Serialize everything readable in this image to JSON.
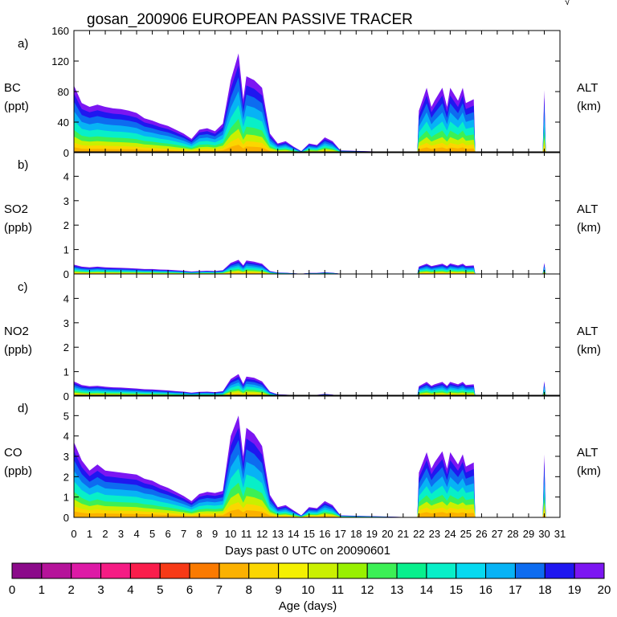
{
  "title": "gosan_200906 EUROPEAN PASSIVE TRACER",
  "chart_data": [
    {
      "type": "area",
      "panel_label": "a)",
      "species": "BC",
      "unit": "(ppt)",
      "right_label": "ALT",
      "right_unit": "(km)",
      "ylim": [
        0,
        160
      ],
      "yticks": [
        0,
        40,
        80,
        120,
        160
      ],
      "samples": [
        [
          0,
          88
        ],
        [
          0.5,
          65
        ],
        [
          1,
          60
        ],
        [
          1.5,
          63
        ],
        [
          2,
          60
        ],
        [
          2.5,
          58
        ],
        [
          3,
          57
        ],
        [
          3.5,
          55
        ],
        [
          4,
          52
        ],
        [
          4.5,
          45
        ],
        [
          5,
          42
        ],
        [
          5.5,
          38
        ],
        [
          6,
          35
        ],
        [
          6.5,
          30
        ],
        [
          7,
          25
        ],
        [
          7.5,
          18
        ],
        [
          8,
          30
        ],
        [
          8.5,
          32
        ],
        [
          9,
          28
        ],
        [
          9.5,
          38
        ],
        [
          10,
          95
        ],
        [
          10.5,
          130
        ],
        [
          10.8,
          70
        ],
        [
          11,
          100
        ],
        [
          11.5,
          95
        ],
        [
          12,
          85
        ],
        [
          12.5,
          25
        ],
        [
          13,
          12
        ],
        [
          13.5,
          15
        ],
        [
          14,
          8
        ],
        [
          14.5,
          2
        ],
        [
          15,
          12
        ],
        [
          15.5,
          10
        ],
        [
          16,
          20
        ],
        [
          16.5,
          15
        ],
        [
          17,
          3
        ],
        [
          21.9,
          0
        ],
        [
          22,
          55
        ],
        [
          22.5,
          85
        ],
        [
          22.8,
          60
        ],
        [
          23,
          68
        ],
        [
          23.5,
          85
        ],
        [
          23.8,
          60
        ],
        [
          24,
          85
        ],
        [
          24.5,
          68
        ],
        [
          24.8,
          85
        ],
        [
          25,
          65
        ],
        [
          25.5,
          70
        ],
        [
          25.6,
          0
        ],
        [
          29.9,
          0
        ],
        [
          30,
          82
        ],
        [
          30.1,
          0
        ]
      ]
    },
    {
      "type": "area",
      "panel_label": "b)",
      "species": "SO2",
      "unit": "(ppb)",
      "right_label": "ALT",
      "right_unit": "(km)",
      "ylim": [
        0,
        5
      ],
      "yticks": [
        0,
        1,
        2,
        3,
        4
      ],
      "samples": [
        [
          0,
          0.38
        ],
        [
          0.5,
          0.3
        ],
        [
          1,
          0.27
        ],
        [
          1.5,
          0.3
        ],
        [
          2,
          0.27
        ],
        [
          2.5,
          0.26
        ],
        [
          3,
          0.25
        ],
        [
          3.5,
          0.24
        ],
        [
          4,
          0.22
        ],
        [
          4.5,
          0.2
        ],
        [
          5,
          0.2
        ],
        [
          5.5,
          0.18
        ],
        [
          6,
          0.17
        ],
        [
          6.5,
          0.15
        ],
        [
          7,
          0.13
        ],
        [
          7.5,
          0.1
        ],
        [
          8,
          0.12
        ],
        [
          8.5,
          0.13
        ],
        [
          9,
          0.12
        ],
        [
          9.5,
          0.15
        ],
        [
          10,
          0.45
        ],
        [
          10.5,
          0.58
        ],
        [
          10.8,
          0.35
        ],
        [
          11,
          0.55
        ],
        [
          11.5,
          0.5
        ],
        [
          12,
          0.42
        ],
        [
          12.5,
          0.12
        ],
        [
          13,
          0.06
        ],
        [
          13.5,
          0.05
        ],
        [
          14,
          0.03
        ],
        [
          14.5,
          0.01
        ],
        [
          15,
          0.04
        ],
        [
          15.5,
          0.04
        ],
        [
          16,
          0.07
        ],
        [
          16.5,
          0.05
        ],
        [
          17,
          0.01
        ],
        [
          21.9,
          0
        ],
        [
          22,
          0.3
        ],
        [
          22.5,
          0.42
        ],
        [
          22.8,
          0.32
        ],
        [
          23,
          0.35
        ],
        [
          23.5,
          0.42
        ],
        [
          23.8,
          0.32
        ],
        [
          24,
          0.43
        ],
        [
          24.5,
          0.35
        ],
        [
          24.8,
          0.42
        ],
        [
          25,
          0.33
        ],
        [
          25.5,
          0.35
        ],
        [
          25.6,
          0
        ],
        [
          29.9,
          0
        ],
        [
          30,
          0.45
        ],
        [
          30.1,
          0
        ]
      ]
    },
    {
      "type": "area",
      "panel_label": "c)",
      "species": "NO2",
      "unit": "(ppb)",
      "right_label": "ALT",
      "right_unit": "(km)",
      "ylim": [
        0,
        5
      ],
      "yticks": [
        0,
        1,
        2,
        3,
        4
      ],
      "samples": [
        [
          0,
          0.6
        ],
        [
          0.5,
          0.45
        ],
        [
          1,
          0.4
        ],
        [
          1.5,
          0.42
        ],
        [
          2,
          0.38
        ],
        [
          2.5,
          0.36
        ],
        [
          3,
          0.35
        ],
        [
          3.5,
          0.33
        ],
        [
          4,
          0.31
        ],
        [
          4.5,
          0.28
        ],
        [
          5,
          0.27
        ],
        [
          5.5,
          0.25
        ],
        [
          6,
          0.23
        ],
        [
          6.5,
          0.2
        ],
        [
          7,
          0.18
        ],
        [
          7.5,
          0.14
        ],
        [
          8,
          0.17
        ],
        [
          8.5,
          0.18
        ],
        [
          9,
          0.16
        ],
        [
          9.5,
          0.2
        ],
        [
          10,
          0.7
        ],
        [
          10.5,
          0.9
        ],
        [
          10.8,
          0.5
        ],
        [
          11,
          0.8
        ],
        [
          11.5,
          0.75
        ],
        [
          12,
          0.6
        ],
        [
          12.5,
          0.18
        ],
        [
          13,
          0.07
        ],
        [
          13.5,
          0.06
        ],
        [
          14,
          0.04
        ],
        [
          14.5,
          0.02
        ],
        [
          15,
          0.05
        ],
        [
          15.5,
          0.05
        ],
        [
          16,
          0.09
        ],
        [
          16.5,
          0.06
        ],
        [
          17,
          0.01
        ],
        [
          21.9,
          0
        ],
        [
          22,
          0.4
        ],
        [
          22.5,
          0.58
        ],
        [
          22.8,
          0.42
        ],
        [
          23,
          0.48
        ],
        [
          23.5,
          0.58
        ],
        [
          23.8,
          0.42
        ],
        [
          24,
          0.58
        ],
        [
          24.5,
          0.48
        ],
        [
          24.8,
          0.58
        ],
        [
          25,
          0.45
        ],
        [
          25.5,
          0.48
        ],
        [
          25.6,
          0
        ],
        [
          29.9,
          0
        ],
        [
          30,
          0.62
        ],
        [
          30.1,
          0
        ]
      ]
    },
    {
      "type": "area",
      "panel_label": "d)",
      "species": "CO",
      "unit": "(ppb)",
      "right_label": "ALT",
      "right_unit": "(km)",
      "ylim": [
        0,
        6
      ],
      "yticks": [
        0,
        1,
        2,
        3,
        4,
        5
      ],
      "samples": [
        [
          0,
          3.7
        ],
        [
          0.5,
          2.8
        ],
        [
          1,
          2.3
        ],
        [
          1.5,
          2.6
        ],
        [
          2,
          2.3
        ],
        [
          2.5,
          2.25
        ],
        [
          3,
          2.2
        ],
        [
          3.5,
          2.15
        ],
        [
          4,
          2.1
        ],
        [
          4.5,
          1.9
        ],
        [
          5,
          1.8
        ],
        [
          5.5,
          1.6
        ],
        [
          6,
          1.45
        ],
        [
          6.5,
          1.25
        ],
        [
          7,
          1.05
        ],
        [
          7.5,
          0.8
        ],
        [
          8,
          1.15
        ],
        [
          8.5,
          1.25
        ],
        [
          9,
          1.2
        ],
        [
          9.5,
          1.3
        ],
        [
          10,
          4.0
        ],
        [
          10.5,
          5.0
        ],
        [
          10.8,
          3.0
        ],
        [
          11,
          4.4
        ],
        [
          11.5,
          4.1
        ],
        [
          12,
          3.5
        ],
        [
          12.5,
          1.1
        ],
        [
          13,
          0.5
        ],
        [
          13.5,
          0.6
        ],
        [
          14,
          0.35
        ],
        [
          14.5,
          0.1
        ],
        [
          15,
          0.5
        ],
        [
          15.5,
          0.45
        ],
        [
          16,
          0.8
        ],
        [
          16.5,
          0.6
        ],
        [
          17,
          0.1
        ],
        [
          21.9,
          0
        ],
        [
          22,
          2.2
        ],
        [
          22.5,
          3.2
        ],
        [
          22.8,
          2.4
        ],
        [
          23,
          2.7
        ],
        [
          23.5,
          3.25
        ],
        [
          23.8,
          2.4
        ],
        [
          24,
          3.2
        ],
        [
          24.5,
          2.6
        ],
        [
          24.8,
          3.1
        ],
        [
          25,
          2.5
        ],
        [
          25.5,
          2.7
        ],
        [
          25.6,
          0
        ],
        [
          29.9,
          0
        ],
        [
          30,
          3.1
        ],
        [
          30.1,
          0
        ]
      ]
    }
  ],
  "x_axis": {
    "label": "Days past 0 UTC on 20090601",
    "min": 0,
    "max": 31,
    "ticks": [
      "0",
      "1",
      "2",
      "3",
      "4",
      "5",
      "6",
      "7",
      "8",
      "9",
      "10",
      "11",
      "12",
      "13",
      "14",
      "15",
      "16",
      "17",
      "18",
      "19",
      "20",
      "21",
      "22",
      "23",
      "24",
      "25",
      "26",
      "27",
      "28",
      "29",
      "30",
      "31"
    ]
  },
  "colorbar": {
    "label": "Age (days)",
    "ticks": [
      "0",
      "1",
      "2",
      "3",
      "4",
      "5",
      "6",
      "7",
      "8",
      "9",
      "10",
      "11",
      "12",
      "13",
      "14",
      "15",
      "16",
      "17",
      "18",
      "19",
      "20"
    ],
    "colors": [
      "#8b0a8a",
      "#b5139a",
      "#dd1aa6",
      "#f51c84",
      "#fa1d4c",
      "#f73a17",
      "#fa7a00",
      "#fbb100",
      "#fbd600",
      "#f4f000",
      "#caf000",
      "#98f000",
      "#3cf055",
      "#08f08d",
      "#08efc8",
      "#06d9f0",
      "#07b3f5",
      "#0d6cf0",
      "#1f17f0",
      "#7c16f2"
    ]
  },
  "top_right_mark": "√"
}
